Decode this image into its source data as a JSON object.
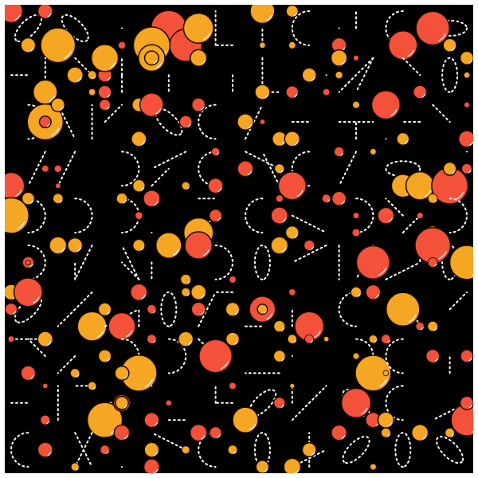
{
  "artwork": {
    "type": "generative-pattern",
    "background_color": "#000000",
    "frame_color": "#ffffff",
    "line_color": "#ffffff",
    "line_style": "dashed",
    "circle_colors": [
      "#f5a623",
      "#f4513a"
    ],
    "highlight_color": "#ffffff",
    "outline_color": "#1a0a00",
    "grid": {
      "columns": 10,
      "rows": 10
    }
  }
}
